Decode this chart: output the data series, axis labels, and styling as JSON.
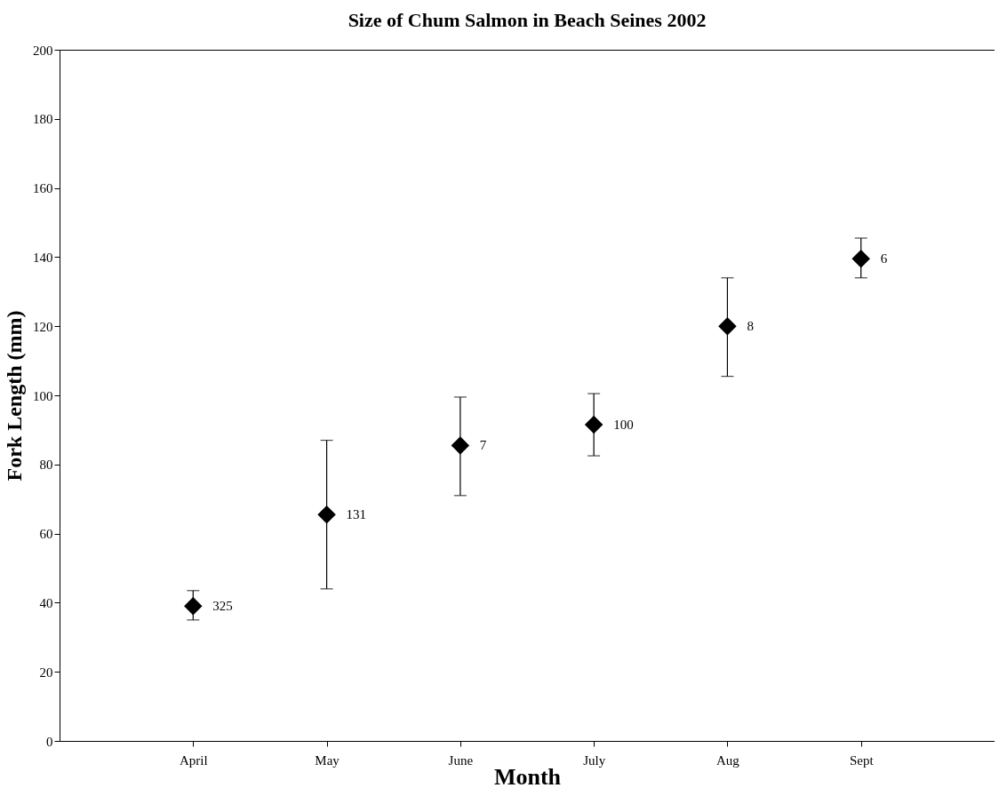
{
  "chart_data": {
    "type": "scatter",
    "title": "Size of Chum Salmon in Beach Seines 2002",
    "xlabel": "Month",
    "ylabel": "Fork Length (mm)",
    "categories": [
      "April",
      "May",
      "June",
      "July",
      "Aug",
      "Sept"
    ],
    "series": [
      {
        "color": "#000000",
        "values": [
          39,
          65.5,
          85.5,
          91.5,
          120,
          139.5
        ],
        "errors": [
          [
            35,
            43.5
          ],
          [
            44,
            87
          ],
          [
            71,
            99.5
          ],
          [
            82.5,
            100.5
          ],
          [
            105.5,
            134
          ],
          [
            134,
            145.5
          ]
        ]
      }
    ],
    "ylim": [
      0,
      200
    ],
    "yticks": [
      0,
      20,
      40,
      60,
      80,
      100,
      120,
      140,
      160,
      180,
      200
    ],
    "grid": false,
    "marker": "diamond",
    "annotations": [
      {
        "text": "325",
        "x": "April",
        "y": 39
      },
      {
        "text": "131",
        "x": "May",
        "y": 65.5
      },
      {
        "text": "7",
        "x": "June",
        "y": 85.5
      },
      {
        "text": "100",
        "x": "July",
        "y": 91.5
      },
      {
        "text": "8",
        "x": "Aug",
        "y": 120
      },
      {
        "text": "6",
        "x": "Sept",
        "y": 139.5
      }
    ]
  }
}
